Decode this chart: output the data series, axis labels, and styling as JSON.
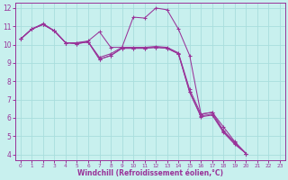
{
  "xlabel": "Windchill (Refroidissement éolien,°C)",
  "bg_color": "#c8f0ee",
  "grid_color": "#a8dedd",
  "line_color": "#993399",
  "spine_color": "#993399",
  "xlim": [
    -0.5,
    23.5
  ],
  "ylim": [
    3.7,
    12.3
  ],
  "xticks": [
    0,
    1,
    2,
    3,
    4,
    5,
    6,
    7,
    8,
    9,
    10,
    11,
    12,
    13,
    14,
    15,
    16,
    17,
    18,
    19,
    20,
    21,
    22,
    23
  ],
  "yticks": [
    4,
    5,
    6,
    7,
    8,
    9,
    10,
    11,
    12
  ],
  "series": [
    [
      10.3,
      10.85,
      11.15,
      10.75,
      10.1,
      10.1,
      10.2,
      10.7,
      9.85,
      9.85,
      11.5,
      11.45,
      12.0,
      11.9,
      10.85,
      9.4,
      6.2,
      6.3,
      5.5,
      4.7,
      4.05
    ],
    [
      10.3,
      10.85,
      11.1,
      10.75,
      10.1,
      10.1,
      10.15,
      9.3,
      9.5,
      9.85,
      9.85,
      9.85,
      9.9,
      9.85,
      9.55,
      7.55,
      6.2,
      6.3,
      5.3,
      4.65,
      4.05
    ],
    [
      10.3,
      10.85,
      11.1,
      10.75,
      10.1,
      10.05,
      10.15,
      9.2,
      9.4,
      9.8,
      9.8,
      9.8,
      9.85,
      9.8,
      9.5,
      7.4,
      6.1,
      6.2,
      5.25,
      4.6,
      4.05
    ],
    [
      10.3,
      10.85,
      11.1,
      10.75,
      10.1,
      10.05,
      10.15,
      9.2,
      9.4,
      9.8,
      9.8,
      9.8,
      9.85,
      9.8,
      9.5,
      7.4,
      6.05,
      6.15,
      5.2,
      4.55,
      4.05
    ]
  ],
  "x_start": 0,
  "tick_fontsize": 5.5,
  "label_fontsize": 5.5
}
